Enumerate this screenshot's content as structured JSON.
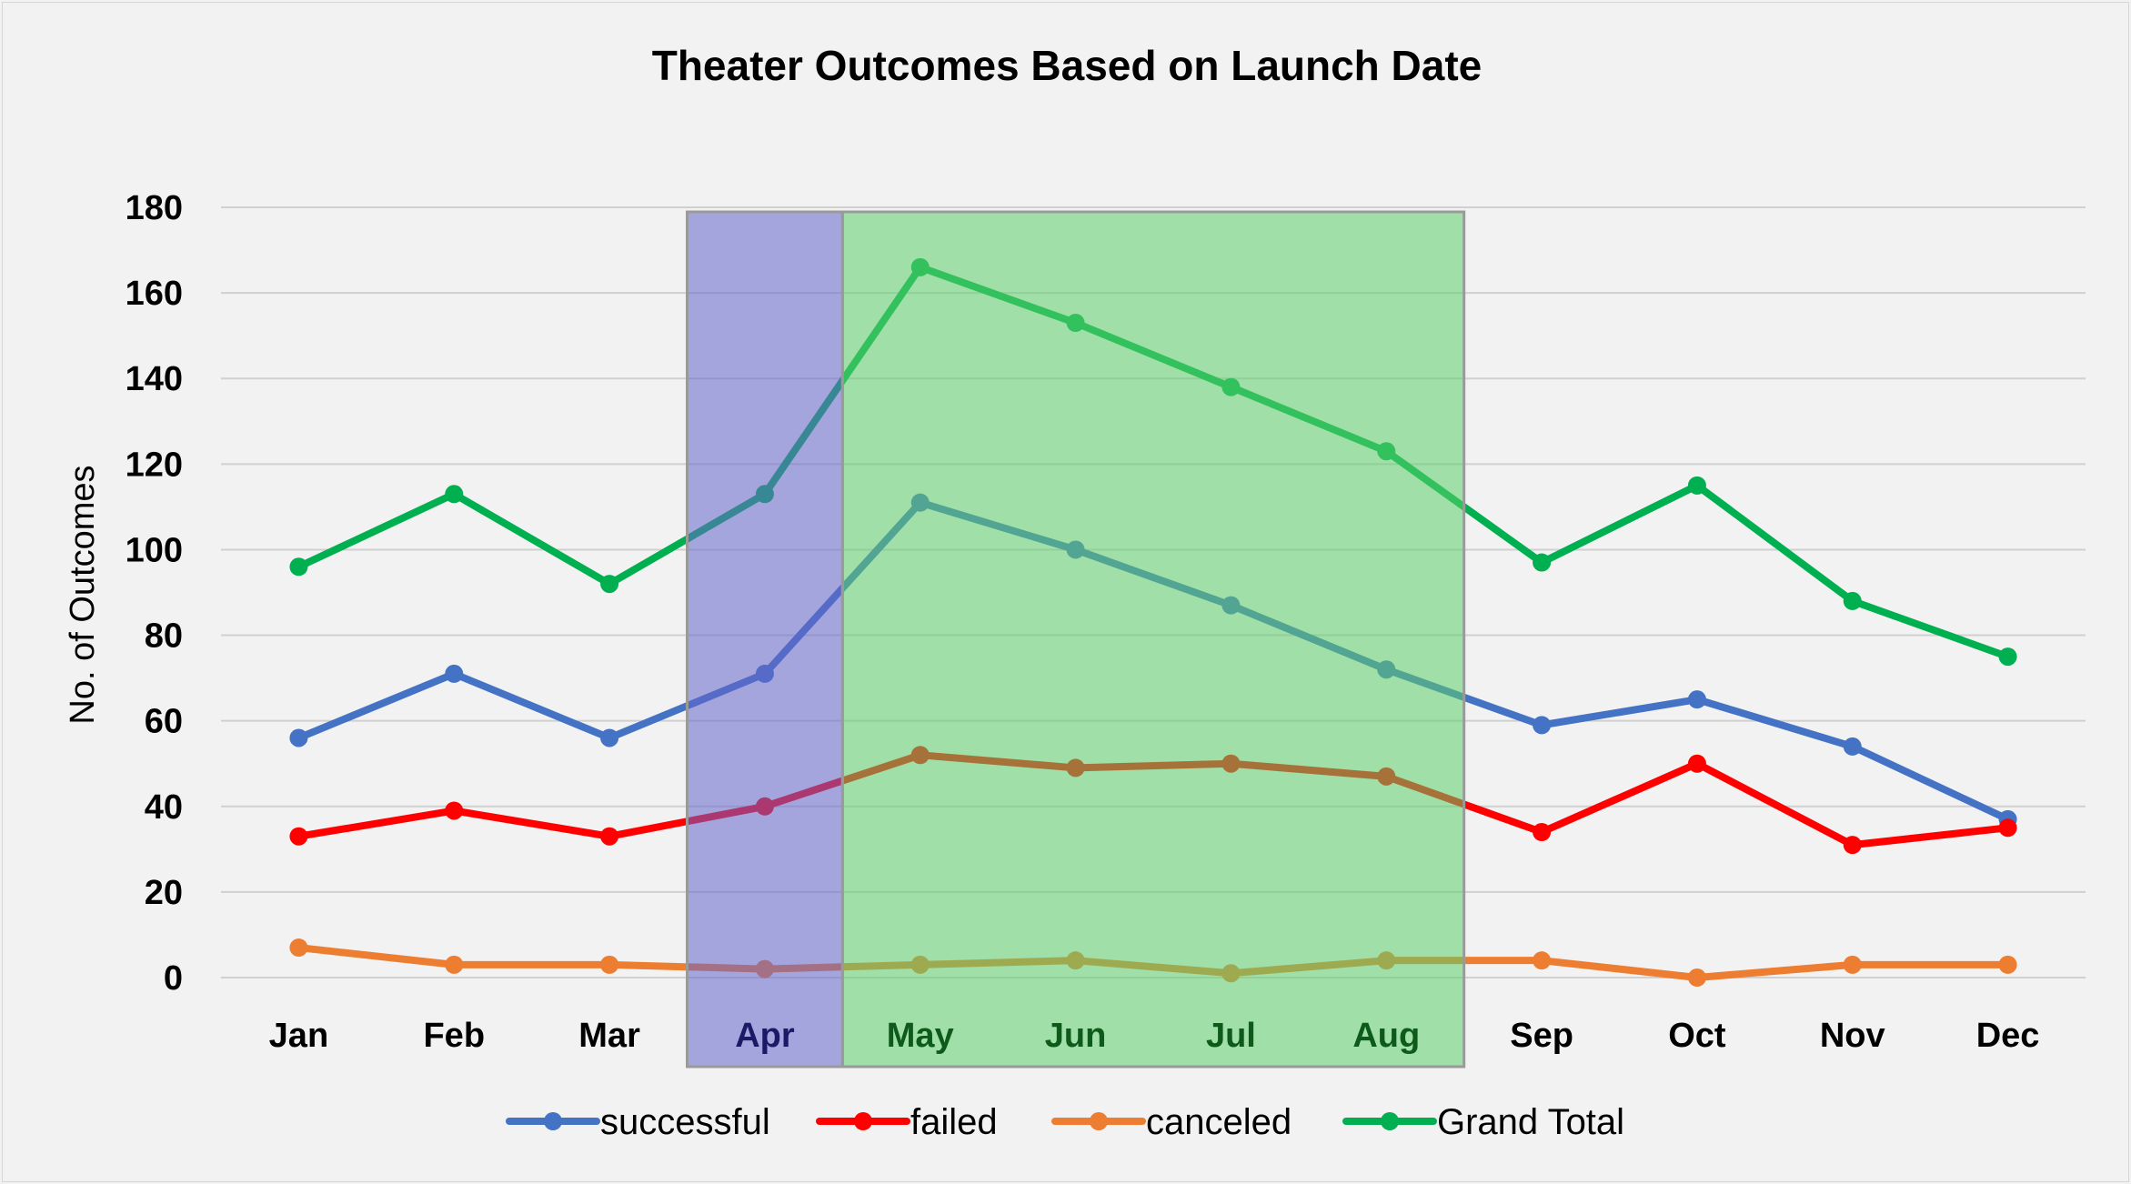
{
  "chart_data": {
    "type": "line",
    "title": "Theater Outcomes Based on Launch Date",
    "xlabel": "",
    "ylabel": "No. of Outcomes",
    "categories": [
      "Jan",
      "Feb",
      "Mar",
      "Apr",
      "May",
      "Jun",
      "Jul",
      "Aug",
      "Sep",
      "Oct",
      "Nov",
      "Dec"
    ],
    "ylim": [
      0,
      180
    ],
    "yticks": [
      0,
      20,
      40,
      60,
      80,
      100,
      120,
      140,
      160,
      180
    ],
    "grid": true,
    "legend_position": "bottom",
    "series": [
      {
        "name": "successful",
        "color": "#4472c4",
        "values": [
          56,
          71,
          56,
          71,
          111,
          100,
          87,
          72,
          59,
          65,
          54,
          37
        ]
      },
      {
        "name": "failed",
        "color": "#ff0000",
        "values": [
          33,
          39,
          33,
          40,
          52,
          49,
          50,
          47,
          34,
          50,
          31,
          35
        ]
      },
      {
        "name": "canceled",
        "color": "#ed7d31",
        "values": [
          7,
          3,
          3,
          2,
          3,
          4,
          1,
          4,
          4,
          0,
          3,
          3
        ]
      },
      {
        "name": "Grand Total",
        "color": "#00b050",
        "values": [
          96,
          113,
          92,
          113,
          166,
          153,
          138,
          123,
          97,
          115,
          88,
          75
        ]
      }
    ],
    "highlights": [
      {
        "categories": [
          "Apr"
        ],
        "color": "#6666cc",
        "label_color": "#1a1a66"
      },
      {
        "categories": [
          "May",
          "Jun",
          "Jul",
          "Aug"
        ],
        "color": "#5cd06a",
        "label_color": "#0d5a1a"
      }
    ]
  }
}
